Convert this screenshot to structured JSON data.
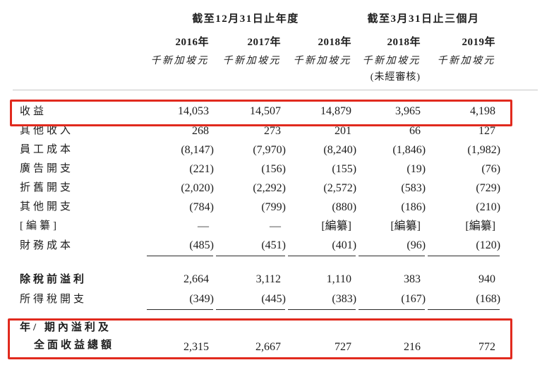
{
  "table": {
    "col_groups": [
      {
        "label": "截至12月31日止年度",
        "span": 3
      },
      {
        "label": "截至3月31日止三個月",
        "span": 2
      }
    ],
    "columns": [
      {
        "year": "2016年",
        "unit": "千新加坡元",
        "note": ""
      },
      {
        "year": "2017年",
        "unit": "千新加坡元",
        "note": ""
      },
      {
        "year": "2018年",
        "unit": "千新加坡元",
        "note": ""
      },
      {
        "year": "2018年",
        "unit": "千新加坡元",
        "note": "(未經審核)"
      },
      {
        "year": "2019年",
        "unit": "千新加坡元",
        "note": ""
      }
    ],
    "rows": [
      {
        "label": "收益",
        "values": [
          "14,053",
          "14,507",
          "14,879",
          "3,965",
          "4,198"
        ],
        "highlight": true
      },
      {
        "label": "其他收入",
        "values": [
          "268",
          "273",
          "201",
          "66",
          "127"
        ]
      },
      {
        "label": "員工成本",
        "values": [
          "(8,147)",
          "(7,970)",
          "(8,240)",
          "(1,846)",
          "(1,982)"
        ]
      },
      {
        "label": "廣告開支",
        "values": [
          "(221)",
          "(156)",
          "(155)",
          "(19)",
          "(76)"
        ]
      },
      {
        "label": "折舊開支",
        "values": [
          "(2,020)",
          "(2,292)",
          "(2,572)",
          "(583)",
          "(729)"
        ]
      },
      {
        "label": "其他開支",
        "values": [
          "(784)",
          "(799)",
          "(880)",
          "(186)",
          "(210)"
        ]
      },
      {
        "label": "[編纂]",
        "values": [
          "—",
          "—",
          "[編纂]",
          "[編纂]",
          "[編纂]"
        ]
      },
      {
        "label": "財務成本",
        "values": [
          "(485)",
          "(451)",
          "(401)",
          "(96)",
          "(120)"
        ],
        "rule_below": true
      },
      {
        "label": "除稅前溢利",
        "bold": true,
        "values": [
          "2,664",
          "3,112",
          "1,110",
          "383",
          "940"
        ]
      },
      {
        "label": "所得稅開支",
        "values": [
          "(349)",
          "(445)",
          "(383)",
          "(167)",
          "(168)"
        ],
        "rule_below": true
      },
      {
        "label_lines": [
          "年/ 期內溢利及",
          "全面收益總額"
        ],
        "bold": true,
        "values": [
          "2,315",
          "2,667",
          "727",
          "216",
          "772"
        ],
        "rule_far": true,
        "highlight": true
      }
    ],
    "colors": {
      "highlight_border": "#e12a1e",
      "text": "#1d1d1d",
      "rule_line": "#2b2b2b",
      "header_line": "#c6c6c6"
    }
  }
}
